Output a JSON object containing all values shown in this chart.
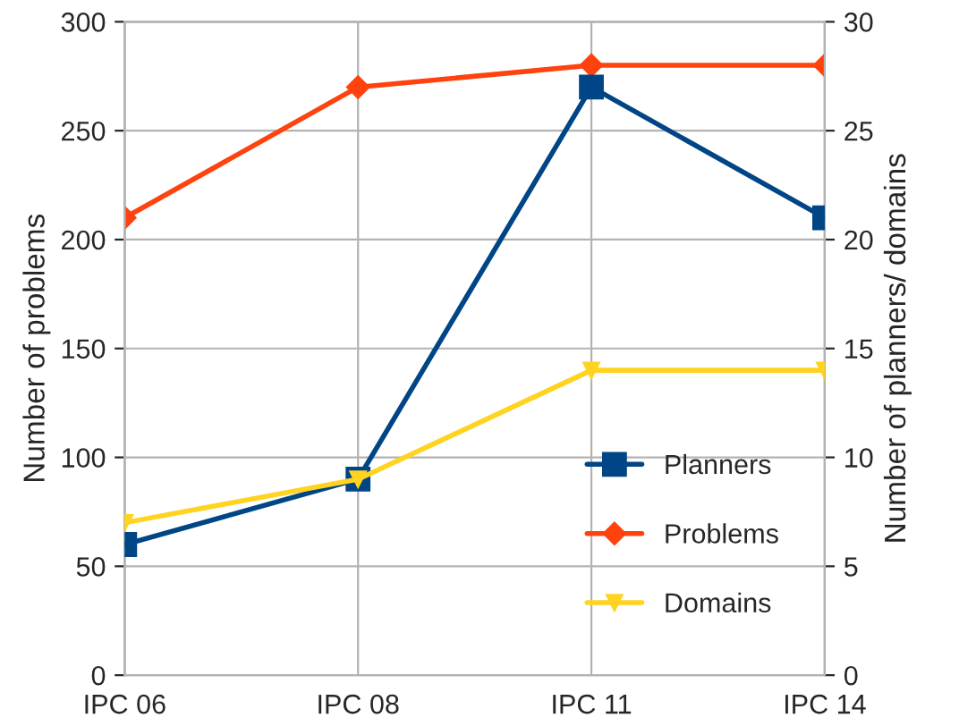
{
  "chart_data": {
    "type": "line",
    "categories": [
      "IPC 06",
      "IPC 08",
      "IPC 11",
      "IPC 14"
    ],
    "ylabel": "Number of problems",
    "y2label": "Number of planners/ domains",
    "ylim": [
      0,
      300
    ],
    "yticks": [
      0,
      50,
      100,
      150,
      200,
      250,
      300
    ],
    "y2lim": [
      0,
      30
    ],
    "y2ticks": [
      0,
      5,
      10,
      15,
      20,
      25,
      30
    ],
    "grid": true,
    "legend": "bottom right",
    "line_style": "solid",
    "series": [
      {
        "name": "Planners",
        "color": "#004586",
        "values": [
          6,
          9,
          27,
          21
        ],
        "axis": "y2",
        "marker": "square"
      },
      {
        "name": "Problems",
        "color": "#ff420e",
        "values": [
          210,
          270,
          280,
          280
        ],
        "axis": "y",
        "marker": "diamond"
      },
      {
        "name": "Domains",
        "color": "#ffd320",
        "values": [
          7,
          9,
          14,
          14
        ],
        "axis": "y2",
        "marker": "triangle"
      }
    ]
  }
}
